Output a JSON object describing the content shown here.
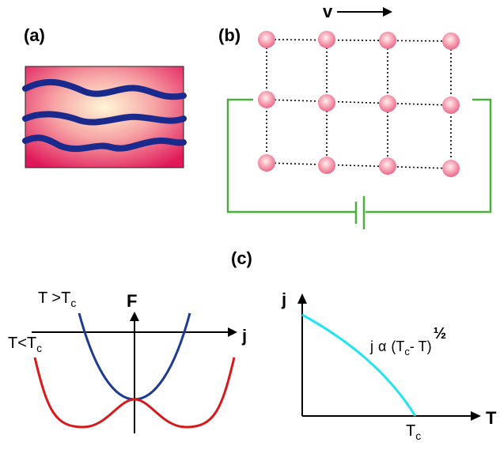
{
  "panels": {
    "a": {
      "label": "(a)"
    },
    "b": {
      "label": "(b)",
      "velocity_label": "v"
    },
    "c": {
      "label": "(c)"
    }
  },
  "free_energy_plot": {
    "y_axis_label": "F",
    "x_axis_label": "j",
    "curve_above": {
      "label_main": "T >T",
      "label_sub": "c",
      "color": "#1f3a93"
    },
    "curve_below": {
      "label_main": "T<T",
      "label_sub": "c",
      "color": "#d7191c"
    }
  },
  "current_plot": {
    "y_axis_label": "j",
    "x_axis_label": "T",
    "tick_main": "T",
    "tick_sub": "c",
    "formula": {
      "prefix": "j",
      "alpha": "α",
      "open": "(T",
      "sub": "c",
      "rest": "- T)",
      "exponent": "½"
    },
    "curve_color": "#22e3f0"
  },
  "colors": {
    "flux_line": "#1a2a8c",
    "node": "#f07a9a",
    "circuit_wire": "#4caf3c",
    "axis": "#000000"
  }
}
